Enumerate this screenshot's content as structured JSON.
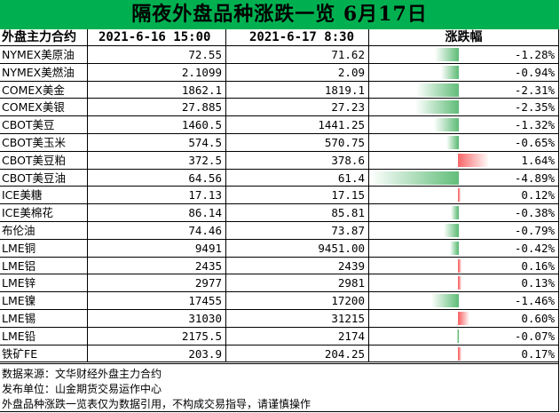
{
  "title": "隔夜外盘品种涨跌一览 6月17日",
  "headers": {
    "name": "外盘主力合约",
    "date_a": "2021-6-16 15:00",
    "date_b": "2021-6-17 8:30",
    "change": "涨跌幅"
  },
  "colors": {
    "title_bg": "#00b050",
    "up_bar": "#f8696b",
    "down_bar": "#63be7b"
  },
  "chart_data": {
    "type": "table",
    "title": "隔夜外盘品种涨跌一览 6月17日",
    "columns": [
      "外盘主力合约",
      "2021-6-16 15:00",
      "2021-6-17 8:30",
      "涨跌幅"
    ],
    "rows": [
      {
        "name": "NYMEX美原油",
        "a": "72.55",
        "b": "71.62",
        "pct_text": "-1.28%",
        "pct": -1.28
      },
      {
        "name": "NYMEX美燃油",
        "a": "2.1099",
        "b": "2.09",
        "pct_text": "-0.94%",
        "pct": -0.94
      },
      {
        "name": "COMEX美金",
        "a": "1862.1",
        "b": "1819.1",
        "pct_text": "-2.31%",
        "pct": -2.31
      },
      {
        "name": "COMEX美银",
        "a": "27.885",
        "b": "27.23",
        "pct_text": "-2.35%",
        "pct": -2.35
      },
      {
        "name": "CBOT美豆",
        "a": "1460.5",
        "b": "1441.25",
        "pct_text": "-1.32%",
        "pct": -1.32
      },
      {
        "name": "CBOT美玉米",
        "a": "574.5",
        "b": "570.75",
        "pct_text": "-0.65%",
        "pct": -0.65
      },
      {
        "name": "CBOT美豆粕",
        "a": "372.5",
        "b": "378.6",
        "pct_text": "1.64%",
        "pct": 1.64
      },
      {
        "name": "CBOT美豆油",
        "a": "64.56",
        "b": "61.4",
        "pct_text": "-4.89%",
        "pct": -4.89
      },
      {
        "name": "ICE美糖",
        "a": "17.13",
        "b": "17.15",
        "pct_text": "0.12%",
        "pct": 0.12
      },
      {
        "name": "ICE美棉花",
        "a": "86.14",
        "b": "85.81",
        "pct_text": "-0.38%",
        "pct": -0.38
      },
      {
        "name": "布伦油",
        "a": "74.46",
        "b": "73.87",
        "pct_text": "-0.79%",
        "pct": -0.79
      },
      {
        "name": "LME铜",
        "a": "9491",
        "b": "9451.00",
        "pct_text": "-0.42%",
        "pct": -0.42
      },
      {
        "name": "LME铝",
        "a": "2435",
        "b": "2439",
        "pct_text": "0.16%",
        "pct": 0.16
      },
      {
        "name": "LME锌",
        "a": "2977",
        "b": "2981",
        "pct_text": "0.13%",
        "pct": 0.13
      },
      {
        "name": "LME镍",
        "a": "17455",
        "b": "17200",
        "pct_text": "-1.46%",
        "pct": -1.46
      },
      {
        "name": "LME锡",
        "a": "31030",
        "b": "31215",
        "pct_text": "0.60%",
        "pct": 0.6
      },
      {
        "name": "LME铅",
        "a": "2175.5",
        "b": "2174",
        "pct_text": "-0.07%",
        "pct": -0.07
      },
      {
        "name": "铁矿FE",
        "a": "203.9",
        "b": "204.25",
        "pct_text": "0.17%",
        "pct": 0.17
      }
    ]
  },
  "footer": {
    "source": "数据来源：文华财经外盘主力合约",
    "publisher": "发布单位：山金期货交易运作中心",
    "disclaimer": "外盘品种涨跌一览表仅为数据引用，不构成交易指导，请谨慎操作"
  }
}
